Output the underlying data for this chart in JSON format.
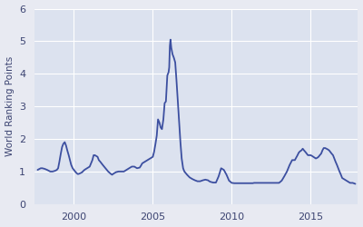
{
  "title": "",
  "ylabel": "World Ranking Points",
  "xlabel": "",
  "line_color": "#3c4fa0",
  "background_color": "#e8eaf2",
  "axes_background": "#dce2ef",
  "grid_color": "#f0f2f8",
  "ylim": [
    0,
    6
  ],
  "yticks": [
    0,
    1,
    2,
    3,
    4,
    5,
    6
  ],
  "xticks": [
    2000,
    2005,
    2010,
    2015
  ],
  "line_width": 1.3,
  "figsize": [
    4.0,
    2.5
  ],
  "dpi": 100,
  "xlim": [
    1997.5,
    2018.0
  ],
  "data": {
    "years": [
      1997.7,
      1997.9,
      1998.0,
      1998.15,
      1998.3,
      1998.5,
      1998.65,
      1998.8,
      1998.92,
      1999.0,
      1999.08,
      1999.17,
      1999.25,
      1999.33,
      1999.42,
      1999.5,
      1999.58,
      1999.67,
      1999.75,
      1999.83,
      1999.92,
      2000.0,
      2000.08,
      2000.17,
      2000.25,
      2000.33,
      2000.5,
      2000.67,
      2000.83,
      2001.0,
      2001.17,
      2001.25,
      2001.33,
      2001.5,
      2001.58,
      2001.67,
      2001.83,
      2002.0,
      2002.17,
      2002.33,
      2002.42,
      2002.5,
      2002.67,
      2002.83,
      2003.0,
      2003.17,
      2003.33,
      2003.5,
      2003.67,
      2003.83,
      2004.0,
      2004.17,
      2004.25,
      2004.33,
      2004.5,
      2004.67,
      2004.83,
      2005.0,
      2005.08,
      2005.17,
      2005.25,
      2005.33,
      2005.42,
      2005.5,
      2005.58,
      2005.67,
      2005.75,
      2005.83,
      2005.92,
      2006.0,
      2006.04,
      2006.08,
      2006.12,
      2006.17,
      2006.25,
      2006.33,
      2006.42,
      2006.5,
      2006.58,
      2006.67,
      2006.75,
      2006.83,
      2006.92,
      2007.0,
      2007.17,
      2007.33,
      2007.5,
      2007.67,
      2007.83,
      2008.0,
      2008.17,
      2008.33,
      2008.5,
      2008.58,
      2008.67,
      2008.83,
      2009.0,
      2009.17,
      2009.33,
      2009.5,
      2009.67,
      2009.83,
      2010.0,
      2010.17,
      2010.33,
      2010.5,
      2010.67,
      2010.83,
      2011.0,
      2011.17,
      2011.33,
      2011.42,
      2011.5,
      2011.67,
      2011.83,
      2012.0,
      2012.17,
      2012.33,
      2012.5,
      2012.67,
      2012.83,
      2013.0,
      2013.17,
      2013.33,
      2013.5,
      2013.67,
      2013.83,
      2014.0,
      2014.08,
      2014.17,
      2014.25,
      2014.33,
      2014.42,
      2014.5,
      2014.58,
      2014.67,
      2014.75,
      2014.83,
      2014.92,
      2015.0,
      2015.08,
      2015.17,
      2015.25,
      2015.33,
      2015.42,
      2015.5,
      2015.58,
      2015.67,
      2015.75,
      2015.83,
      2015.92,
      2016.0,
      2016.08,
      2016.17,
      2016.25,
      2016.33,
      2016.42,
      2016.5,
      2016.58,
      2016.67,
      2016.75,
      2016.83,
      2016.92,
      2017.0,
      2017.17,
      2017.33,
      2017.5,
      2017.67,
      2017.83
    ],
    "values": [
      1.05,
      1.1,
      1.1,
      1.08,
      1.05,
      1.0,
      1.0,
      1.02,
      1.05,
      1.1,
      1.3,
      1.55,
      1.75,
      1.85,
      1.9,
      1.8,
      1.65,
      1.5,
      1.35,
      1.2,
      1.1,
      1.05,
      1.0,
      0.95,
      0.92,
      0.93,
      0.97,
      1.05,
      1.1,
      1.15,
      1.35,
      1.5,
      1.5,
      1.45,
      1.35,
      1.3,
      1.2,
      1.1,
      1.0,
      0.93,
      0.9,
      0.93,
      0.98,
      1.0,
      1.0,
      1.0,
      1.05,
      1.1,
      1.15,
      1.15,
      1.1,
      1.12,
      1.18,
      1.25,
      1.3,
      1.35,
      1.4,
      1.45,
      1.6,
      1.85,
      2.1,
      2.6,
      2.5,
      2.35,
      2.3,
      2.6,
      3.1,
      3.15,
      3.95,
      4.05,
      4.2,
      4.85,
      5.05,
      4.8,
      4.6,
      4.5,
      4.35,
      3.8,
      3.2,
      2.5,
      1.9,
      1.4,
      1.1,
      1.0,
      0.9,
      0.82,
      0.77,
      0.73,
      0.7,
      0.7,
      0.73,
      0.75,
      0.73,
      0.7,
      0.68,
      0.66,
      0.66,
      0.85,
      1.1,
      1.05,
      0.9,
      0.72,
      0.65,
      0.64,
      0.64,
      0.64,
      0.64,
      0.64,
      0.64,
      0.64,
      0.64,
      0.65,
      0.65,
      0.65,
      0.65,
      0.65,
      0.65,
      0.65,
      0.65,
      0.65,
      0.65,
      0.65,
      0.72,
      0.85,
      1.0,
      1.2,
      1.35,
      1.35,
      1.42,
      1.5,
      1.58,
      1.62,
      1.65,
      1.7,
      1.65,
      1.6,
      1.55,
      1.5,
      1.5,
      1.5,
      1.48,
      1.45,
      1.42,
      1.4,
      1.42,
      1.45,
      1.5,
      1.55,
      1.65,
      1.72,
      1.72,
      1.7,
      1.68,
      1.65,
      1.6,
      1.55,
      1.5,
      1.4,
      1.3,
      1.2,
      1.1,
      1.0,
      0.9,
      0.8,
      0.75,
      0.7,
      0.65,
      0.65,
      0.62
    ]
  }
}
